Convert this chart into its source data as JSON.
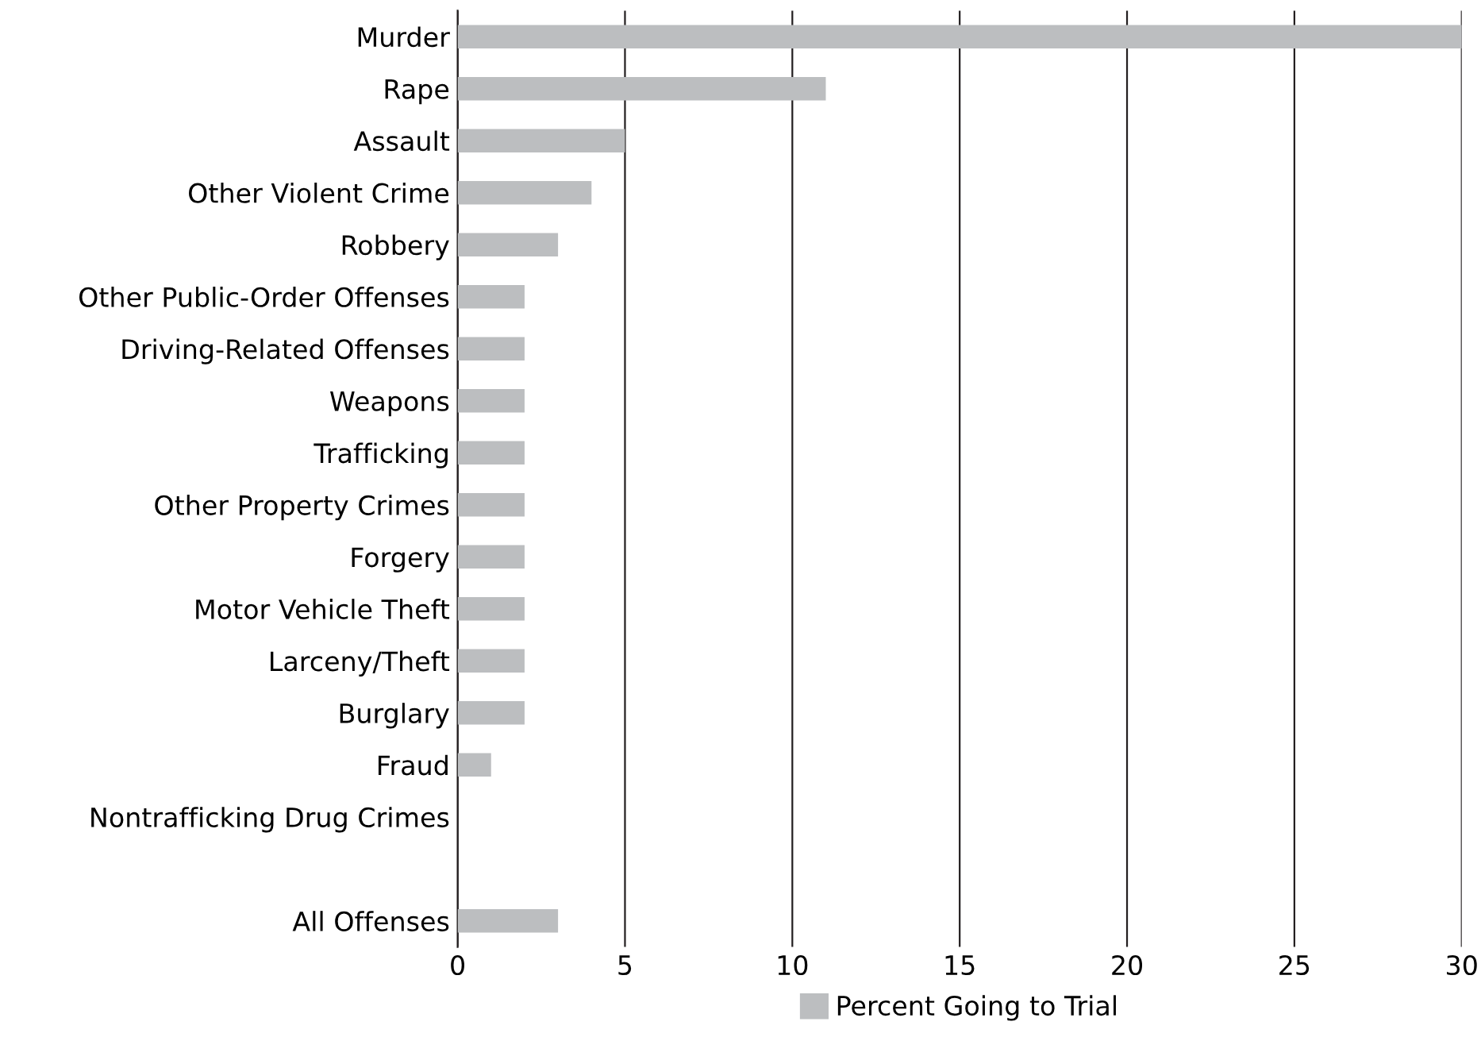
{
  "chart_data": {
    "type": "bar",
    "orientation": "horizontal",
    "categories": [
      "Murder",
      "Rape",
      "Assault",
      "Other Violent Crime",
      "Robbery",
      "Other Public-Order Offenses",
      "Driving-Related Offenses",
      "Weapons",
      "Trafficking",
      "Other Property Crimes",
      "Forgery",
      "Motor Vehicle Theft",
      "Larceny/Theft",
      "Burglary",
      "Fraud",
      "Nontrafficking Drug Crimes",
      null,
      "All Offenses"
    ],
    "series": [
      {
        "name": "Percent Going to Trial",
        "color": "#bcbec0",
        "values": [
          30,
          11,
          5,
          4,
          3,
          2,
          2,
          2,
          2,
          2,
          2,
          2,
          2,
          2,
          1,
          0,
          null,
          3
        ]
      }
    ],
    "xlim": [
      0,
      30
    ],
    "xticks": [
      0,
      5,
      10,
      15,
      20,
      25,
      30
    ],
    "grid": "x",
    "legend": "bottom"
  }
}
